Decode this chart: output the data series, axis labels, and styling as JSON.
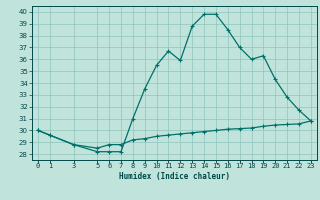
{
  "xlabel": "Humidex (Indice chaleur)",
  "background_color": "#c0e4dc",
  "line_color": "#007068",
  "grid_color": "#90c4bc",
  "spine_color": "#004848",
  "ylim": [
    27.5,
    40.5
  ],
  "yticks": [
    28,
    29,
    30,
    31,
    32,
    33,
    34,
    35,
    36,
    37,
    38,
    39,
    40
  ],
  "xlim": [
    -0.5,
    23.5
  ],
  "xtick_positions": [
    0,
    1,
    3,
    5,
    6,
    7,
    8,
    9,
    10,
    11,
    12,
    13,
    14,
    15,
    16,
    17,
    18,
    19,
    20,
    21,
    22,
    23
  ],
  "xtick_labels": [
    "0",
    "1",
    "3",
    "5",
    "6",
    "7",
    "8",
    "9",
    "10",
    "11",
    "12",
    "13",
    "14",
    "15",
    "16",
    "17",
    "18",
    "19",
    "20",
    "21",
    "22",
    "23"
  ],
  "x_main": [
    0,
    1,
    3,
    5,
    6,
    7,
    8,
    9,
    10,
    11,
    12,
    13,
    14,
    15,
    16,
    17,
    18,
    19,
    20,
    21,
    22,
    23
  ],
  "y_main": [
    30.0,
    29.6,
    28.8,
    28.2,
    28.2,
    28.2,
    31.0,
    33.5,
    35.5,
    36.7,
    35.9,
    38.8,
    39.8,
    39.8,
    38.5,
    37.0,
    36.0,
    36.3,
    34.3,
    32.8,
    31.7,
    30.8
  ],
  "x_second": [
    0,
    1,
    3,
    5,
    6,
    7,
    8,
    9,
    10,
    11,
    12,
    13,
    14,
    15,
    16,
    17,
    18,
    19,
    20,
    21,
    22,
    23
  ],
  "y_second": [
    30.0,
    29.6,
    28.8,
    28.5,
    28.8,
    28.8,
    29.2,
    29.3,
    29.5,
    29.6,
    29.7,
    29.8,
    29.9,
    30.0,
    30.1,
    30.15,
    30.2,
    30.35,
    30.45,
    30.5,
    30.55,
    30.8
  ],
  "linewidth": 0.9,
  "markersize": 3.0,
  "tick_fontsize": 5.0,
  "xlabel_fontsize": 5.5
}
